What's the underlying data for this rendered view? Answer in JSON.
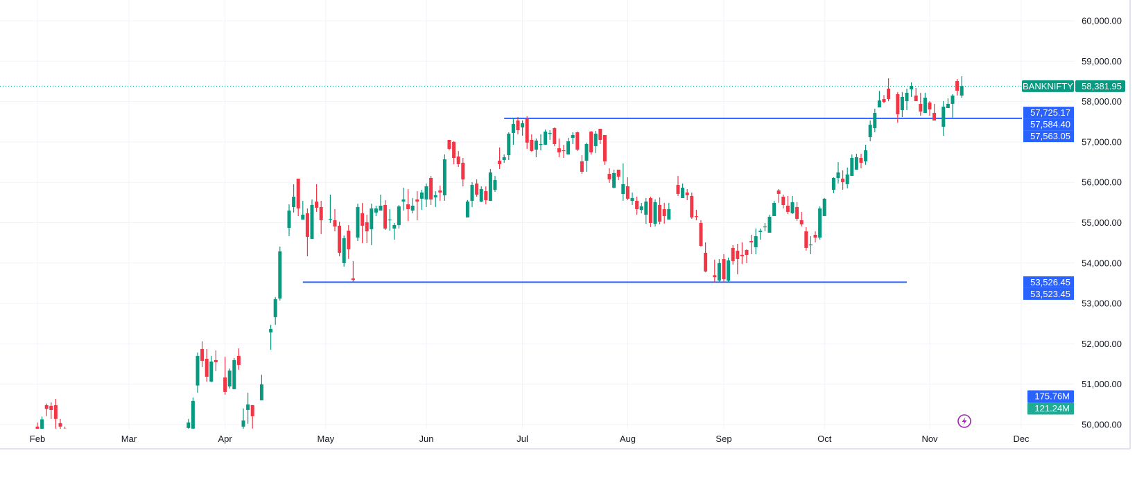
{
  "chart_data": {
    "type": "candlestick",
    "symbol": "BANKNIFTY",
    "last_price": 58381.95,
    "last_price_label": "58,381.95",
    "ylim": [
      50000,
      60000
    ],
    "y_ticks": [
      "50,000.00",
      "51,000.00",
      "52,000.00",
      "53,000.00",
      "54,000.00",
      "55,000.00",
      "56,000.00",
      "57,000.00",
      "58,000.00",
      "59,000.00",
      "60,000.00"
    ],
    "y_tick_values": [
      50000,
      51000,
      52000,
      53000,
      54000,
      55000,
      56000,
      57000,
      58000,
      59000,
      60000
    ],
    "x_ticks": [
      {
        "label": "Feb",
        "date": "2025-02-03"
      },
      {
        "label": "Mar",
        "date": "2025-03-03"
      },
      {
        "label": "Apr",
        "date": "2025-04-01"
      },
      {
        "label": "May",
        "date": "2025-05-01"
      },
      {
        "label": "Jun",
        "date": "2025-06-02"
      },
      {
        "label": "Jul",
        "date": "2025-07-01"
      },
      {
        "label": "Aug",
        "date": "2025-08-01"
      },
      {
        "label": "Sep",
        "date": "2025-09-01"
      },
      {
        "label": "Oct",
        "date": "2025-10-01"
      },
      {
        "label": "Nov",
        "date": "2025-11-03"
      },
      {
        "label": "Dec",
        "date": "2025-12-01"
      }
    ],
    "grid": true,
    "colors": {
      "up": "#089981",
      "down": "#f23645",
      "line": "#2962ff",
      "grid": "#f0f3fa",
      "last_price": "#089981",
      "volume_up": "#22ab94",
      "alert": "#9c27b0"
    },
    "horizontal_lines": [
      {
        "price": 57584.4,
        "from": "2025-06-25",
        "to": "2025-12-02"
      },
      {
        "price": 53526.45,
        "from": "2025-04-24",
        "to": "2025-10-27"
      }
    ],
    "price_badges": [
      {
        "label": "57,725.17",
        "price": 57725.17
      },
      {
        "label": "57,584.40",
        "price": 57584.4
      },
      {
        "label": "57,563.05",
        "price": 57563.05
      },
      {
        "label": "53,526.45",
        "price": 53526.45
      },
      {
        "label": "53,523.45",
        "price": 53523.45
      }
    ],
    "volume_badges": [
      {
        "label": "175.76M",
        "color": "#2962ff"
      },
      {
        "label": "121.24M",
        "color": "#22ab94"
      }
    ],
    "candles_format": [
      "date",
      "open",
      "high",
      "low",
      "close"
    ],
    "candles": [
      [
        "2025-02-03",
        49950,
        50050,
        49700,
        49800
      ],
      [
        "2025-02-04",
        49700,
        50200,
        49600,
        50130
      ],
      [
        "2025-02-05",
        50480,
        50520,
        50210,
        50390
      ],
      [
        "2025-02-06",
        50465,
        50550,
        50140,
        50360
      ],
      [
        "2025-02-07",
        50480,
        50636,
        49900,
        50140
      ],
      [
        "2025-02-10",
        50036,
        50140,
        49850,
        49950
      ],
      [
        "2025-02-11",
        49900,
        49950,
        49700,
        49850
      ],
      [
        "2025-03-20",
        49916,
        50140,
        49850,
        50053
      ],
      [
        "2025-03-21",
        49900,
        50670,
        49850,
        50585
      ],
      [
        "2025-03-24",
        50967,
        51785,
        50790,
        51699
      ],
      [
        "2025-03-25",
        51871,
        52060,
        51425,
        51579
      ],
      [
        "2025-03-26",
        51630,
        51871,
        51065,
        51185
      ],
      [
        "2025-03-27",
        51065,
        51700,
        51050,
        51562
      ],
      [
        "2025-03-28",
        51596,
        51837,
        51322,
        51545
      ],
      [
        "2025-04-01",
        51168,
        51682,
        50739,
        50808
      ],
      [
        "2025-04-02",
        50945,
        51390,
        50893,
        51339
      ],
      [
        "2025-04-03",
        50877,
        51648,
        50877,
        51596
      ],
      [
        "2025-04-04",
        51700,
        51888,
        51356,
        51476
      ],
      [
        "2025-04-07",
        49950,
        50400,
        49800,
        50100
      ],
      [
        "2025-04-08",
        50362,
        50790,
        50019,
        50499
      ],
      [
        "2025-04-09",
        50482,
        50482,
        49899,
        50207
      ],
      [
        "2025-04-11",
        50602,
        51236,
        50602,
        50996
      ],
      [
        "2025-04-15",
        52283,
        52471,
        51854,
        52369
      ],
      [
        "2025-04-16",
        52660,
        53157,
        52471,
        53106
      ],
      [
        "2025-04-17",
        53123,
        54409,
        53072,
        54289
      ],
      [
        "2025-04-21",
        54872,
        55455,
        54667,
        55301
      ],
      [
        "2025-04-22",
        55387,
        55953,
        55250,
        55644
      ],
      [
        "2025-04-23",
        56090,
        56090,
        55163,
        55353
      ],
      [
        "2025-04-24",
        55078,
        55541,
        55078,
        55198
      ],
      [
        "2025-04-25",
        55232,
        55353,
        54169,
        54649
      ],
      [
        "2025-04-28",
        54598,
        55575,
        54598,
        55438
      ],
      [
        "2025-04-29",
        55524,
        55953,
        55267,
        55370
      ],
      [
        "2025-04-30",
        55387,
        55541,
        54718,
        55061
      ],
      [
        "2025-05-02",
        55078,
        55695,
        54992,
        55095
      ],
      [
        "2025-05-05",
        55061,
        55335,
        54786,
        54906
      ],
      [
        "2025-05-06",
        54924,
        55027,
        54169,
        54255
      ],
      [
        "2025-05-07",
        53998,
        54683,
        53912,
        54615
      ],
      [
        "2025-05-08",
        54803,
        54941,
        54100,
        54340
      ],
      [
        "2025-05-09",
        53620,
        54050,
        53526,
        53580
      ],
      [
        "2025-05-12",
        54632,
        55472,
        54546,
        55387
      ],
      [
        "2025-05-13",
        55232,
        55489,
        54495,
        54924
      ],
      [
        "2025-05-14",
        55010,
        55198,
        54495,
        54786
      ],
      [
        "2025-05-15",
        54838,
        55472,
        54443,
        55353
      ],
      [
        "2025-05-16",
        55250,
        55421,
        55163,
        55353
      ],
      [
        "2025-05-19",
        55301,
        55695,
        55301,
        55421
      ],
      [
        "2025-05-20",
        55438,
        55558,
        54820,
        54855
      ],
      [
        "2025-05-21",
        55061,
        55335,
        54803,
        55078
      ],
      [
        "2025-05-22",
        54855,
        54992,
        54580,
        54941
      ],
      [
        "2025-05-23",
        54941,
        55438,
        54855,
        55404
      ],
      [
        "2025-05-26",
        55524,
        55867,
        55301,
        55575
      ],
      [
        "2025-05-27",
        55455,
        55832,
        55044,
        55335
      ],
      [
        "2025-05-28",
        55301,
        55610,
        55233,
        55421
      ],
      [
        "2025-05-29",
        55575,
        55781,
        55061,
        55524
      ],
      [
        "2025-05-30",
        55593,
        55815,
        55318,
        55747
      ],
      [
        "2025-06-02",
        55575,
        55970,
        55387,
        55901
      ],
      [
        "2025-06-03",
        56107,
        56158,
        55438,
        55575
      ],
      [
        "2025-06-04",
        55627,
        55781,
        55387,
        55678
      ],
      [
        "2025-06-05",
        55798,
        55918,
        55541,
        55747
      ],
      [
        "2025-06-06",
        55678,
        56690,
        55541,
        56570
      ],
      [
        "2025-06-09",
        57050,
        57050,
        56793,
        56827
      ],
      [
        "2025-06-10",
        57000,
        57016,
        56450,
        56604
      ],
      [
        "2025-06-11",
        56639,
        56776,
        56380,
        56450
      ],
      [
        "2025-06-12",
        56484,
        56604,
        55900,
        56072
      ],
      [
        "2025-06-13",
        55130,
        55560,
        55130,
        55524
      ],
      [
        "2025-06-16",
        55541,
        56004,
        55387,
        55935
      ],
      [
        "2025-06-17",
        55970,
        56072,
        55644,
        55695
      ],
      [
        "2025-06-18",
        55524,
        55900,
        55507,
        55832
      ],
      [
        "2025-06-19",
        55781,
        55900,
        55455,
        55558
      ],
      [
        "2025-06-20",
        55541,
        56330,
        55541,
        56244
      ],
      [
        "2025-06-23",
        55815,
        56158,
        55765,
        56055
      ],
      [
        "2025-06-24",
        56535,
        56862,
        56330,
        56450
      ],
      [
        "2025-06-25",
        56553,
        56690,
        56484,
        56621
      ],
      [
        "2025-06-26",
        56673,
        57239,
        56553,
        57205
      ],
      [
        "2025-06-27",
        57222,
        57599,
        56930,
        57445
      ],
      [
        "2025-06-30",
        57530,
        57616,
        57190,
        57290
      ],
      [
        "2025-07-01",
        57360,
        57533,
        57153,
        57462
      ],
      [
        "2025-07-02",
        57565,
        57633,
        56827,
        56982
      ],
      [
        "2025-07-03",
        57050,
        57188,
        56758,
        56776
      ],
      [
        "2025-07-04",
        56810,
        57085,
        56621,
        57033
      ],
      [
        "2025-07-07",
        56930,
        57188,
        56793,
        56947
      ],
      [
        "2025-07-08",
        56930,
        57308,
        56930,
        57256
      ],
      [
        "2025-07-09",
        57205,
        57290,
        57050,
        57222
      ],
      [
        "2025-07-10",
        57342,
        57359,
        56896,
        56947
      ],
      [
        "2025-07-11",
        56844,
        57085,
        56622,
        56741
      ],
      [
        "2025-07-14",
        56793,
        56930,
        56604,
        56776
      ],
      [
        "2025-07-15",
        56690,
        57102,
        56690,
        57016
      ],
      [
        "2025-07-16",
        57102,
        57239,
        56947,
        57170
      ],
      [
        "2025-07-17",
        57239,
        57256,
        56776,
        56810
      ],
      [
        "2025-07-18",
        56518,
        56673,
        56210,
        56261
      ],
      [
        "2025-07-21",
        56535,
        56982,
        56261,
        56947
      ],
      [
        "2025-07-22",
        57256,
        57273,
        56690,
        56741
      ],
      [
        "2025-07-23",
        56896,
        57273,
        56725,
        57205
      ],
      [
        "2025-07-24",
        57325,
        57325,
        56947,
        57050
      ],
      [
        "2025-07-25",
        57170,
        57170,
        56433,
        56518
      ],
      [
        "2025-07-28",
        56210,
        56347,
        55987,
        56072
      ],
      [
        "2025-07-29",
        55867,
        56313,
        55850,
        56227
      ],
      [
        "2025-07-30",
        56313,
        56313,
        56055,
        56141
      ],
      [
        "2025-07-31",
        55712,
        56467,
        55541,
        55953
      ],
      [
        "2025-08-01",
        55901,
        56124,
        55558,
        55593
      ],
      [
        "2025-08-04",
        55541,
        55747,
        55438,
        55610
      ],
      [
        "2025-08-05",
        55541,
        55644,
        55198,
        55335
      ],
      [
        "2025-08-06",
        55318,
        55490,
        55233,
        55404
      ],
      [
        "2025-08-07",
        55198,
        55610,
        54975,
        55524
      ],
      [
        "2025-08-08",
        55610,
        55644,
        54890,
        54992
      ],
      [
        "2025-08-11",
        54975,
        55575,
        54906,
        55507
      ],
      [
        "2025-08-12",
        55438,
        55627,
        54958,
        55027
      ],
      [
        "2025-08-13",
        55335,
        55490,
        54975,
        55163
      ],
      [
        "2025-08-14",
        55078,
        55490,
        55078,
        55335
      ],
      [
        "2025-08-18",
        55935,
        56158,
        55661,
        55713
      ],
      [
        "2025-08-19",
        55610,
        55970,
        55610,
        55867
      ],
      [
        "2025-08-20",
        55747,
        55832,
        55558,
        55678
      ],
      [
        "2025-08-21",
        55661,
        55747,
        55095,
        55130
      ],
      [
        "2025-08-22",
        55161,
        55318,
        55061,
        55140
      ],
      [
        "2025-08-25",
        54992,
        55061,
        54406,
        54426
      ],
      [
        "2025-08-26",
        54255,
        54512,
        53775,
        53792
      ],
      [
        "2025-08-28",
        53700,
        54083,
        53526,
        53650
      ],
      [
        "2025-08-29",
        53568,
        54100,
        53523,
        53998
      ],
      [
        "2025-09-01",
        54100,
        54221,
        53530,
        53600
      ],
      [
        "2025-09-02",
        53560,
        54135,
        53530,
        54066
      ],
      [
        "2025-09-03",
        54375,
        54443,
        53960,
        54049
      ],
      [
        "2025-09-04",
        54306,
        54478,
        53724,
        54100
      ],
      [
        "2025-09-05",
        54204,
        54512,
        53980,
        54169
      ],
      [
        "2025-09-08",
        54323,
        54340,
        53998,
        54200
      ],
      [
        "2025-09-09",
        54546,
        54700,
        54220,
        54512
      ],
      [
        "2025-09-10",
        54392,
        54855,
        54220,
        54666
      ],
      [
        "2025-09-11",
        54770,
        54855,
        54580,
        54803
      ],
      [
        "2025-09-12",
        54890,
        54992,
        54786,
        54906
      ],
      [
        "2025-09-15",
        54752,
        55198,
        54752,
        55147
      ],
      [
        "2025-09-16",
        55164,
        55541,
        55164,
        55490
      ],
      [
        "2025-09-17",
        55798,
        55832,
        55490,
        55713
      ],
      [
        "2025-09-18",
        55644,
        55695,
        55353,
        55438
      ],
      [
        "2025-09-19",
        55421,
        55661,
        55216,
        55267
      ],
      [
        "2025-09-22",
        55233,
        55661,
        55216,
        55507
      ],
      [
        "2025-09-23",
        55387,
        55507,
        55044,
        55095
      ],
      [
        "2025-09-24",
        55061,
        55267,
        54906,
        54958
      ],
      [
        "2025-09-25",
        54786,
        54890,
        54306,
        54375
      ],
      [
        "2025-09-26",
        54443,
        54666,
        54220,
        54460
      ],
      [
        "2025-09-29",
        54700,
        54786,
        54512,
        54632
      ],
      [
        "2025-09-30",
        54632,
        55404,
        54580,
        55353
      ],
      [
        "2025-10-01",
        55164,
        55610,
        55164,
        55593
      ],
      [
        "2025-10-03",
        55815,
        56124,
        55730,
        56107
      ],
      [
        "2025-10-06",
        56107,
        56501,
        55970,
        56244
      ],
      [
        "2025-10-07",
        56090,
        56296,
        55815,
        56004
      ],
      [
        "2025-10-08",
        55953,
        56364,
        55850,
        56193
      ],
      [
        "2025-10-09",
        56158,
        56690,
        56158,
        56604
      ],
      [
        "2025-10-10",
        56313,
        56707,
        56313,
        56621
      ],
      [
        "2025-10-13",
        56604,
        56707,
        56347,
        56484
      ],
      [
        "2025-10-14",
        56518,
        56930,
        56433,
        56793
      ],
      [
        "2025-10-15",
        57119,
        57530,
        57016,
        57427
      ],
      [
        "2025-10-16",
        57342,
        57822,
        57239,
        57719
      ],
      [
        "2025-10-17",
        57856,
        58262,
        57856,
        58027
      ],
      [
        "2025-10-20",
        58062,
        58159,
        57959,
        57993
      ],
      [
        "2025-10-21",
        58319,
        58576,
        58010,
        58062
      ],
      [
        "2025-10-23",
        58182,
        58235,
        57479,
        57685
      ],
      [
        "2025-10-24",
        57788,
        58235,
        57616,
        58114
      ],
      [
        "2025-10-27",
        58010,
        58319,
        57788,
        58217
      ],
      [
        "2025-10-28",
        58302,
        58473,
        58114,
        58388
      ],
      [
        "2025-10-29",
        58148,
        58336,
        58044,
        58010
      ],
      [
        "2025-10-30",
        57942,
        58216,
        57650,
        57753
      ],
      [
        "2025-10-31",
        57719,
        58216,
        57719,
        58096
      ],
      [
        "2025-11-03",
        57976,
        58010,
        57650,
        57805
      ],
      [
        "2025-11-04",
        57719,
        57942,
        57530,
        57530
      ],
      [
        "2025-11-06",
        57376,
        58010,
        57153,
        57873
      ],
      [
        "2025-11-07",
        57839,
        58079,
        57839,
        57942
      ],
      [
        "2025-11-10",
        57942,
        58182,
        57600,
        58148
      ],
      [
        "2025-11-11",
        58507,
        58560,
        58148,
        58268
      ],
      [
        "2025-11-12",
        58148,
        58628,
        58096,
        58381.95
      ]
    ]
  }
}
